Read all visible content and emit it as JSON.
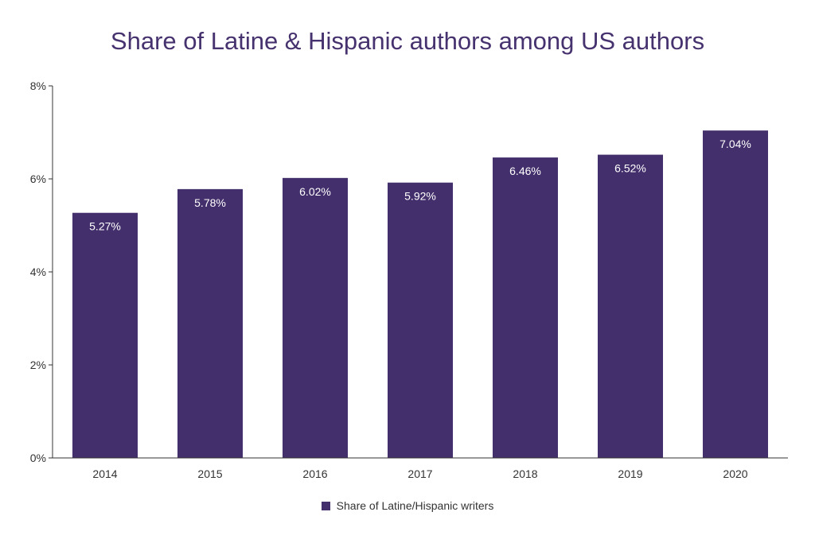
{
  "chart_data": {
    "type": "bar",
    "title": "Share of Latine & Hispanic authors among US authors",
    "categories": [
      "2014",
      "2015",
      "2016",
      "2017",
      "2018",
      "2019",
      "2020"
    ],
    "series": [
      {
        "name": "Share of Latine/Hispanic writers",
        "values": [
          5.27,
          5.78,
          6.02,
          5.92,
          6.46,
          6.52,
          7.04
        ],
        "data_labels": [
          "5.27%",
          "5.78%",
          "6.02%",
          "5.92%",
          "6.46%",
          "6.52%",
          "7.04%"
        ],
        "color": "#432f6b"
      }
    ],
    "xlabel": "",
    "ylabel": "",
    "ylim": [
      0,
      8
    ],
    "yticks": [
      0,
      2,
      4,
      6,
      8
    ],
    "ytick_labels": [
      "0%",
      "2%",
      "4%",
      "6%",
      "8%"
    ],
    "grid": false,
    "legend_position": "bottom"
  },
  "colors": {
    "title": "#46326e",
    "bar": "#432f6b",
    "axis": "#333333"
  }
}
